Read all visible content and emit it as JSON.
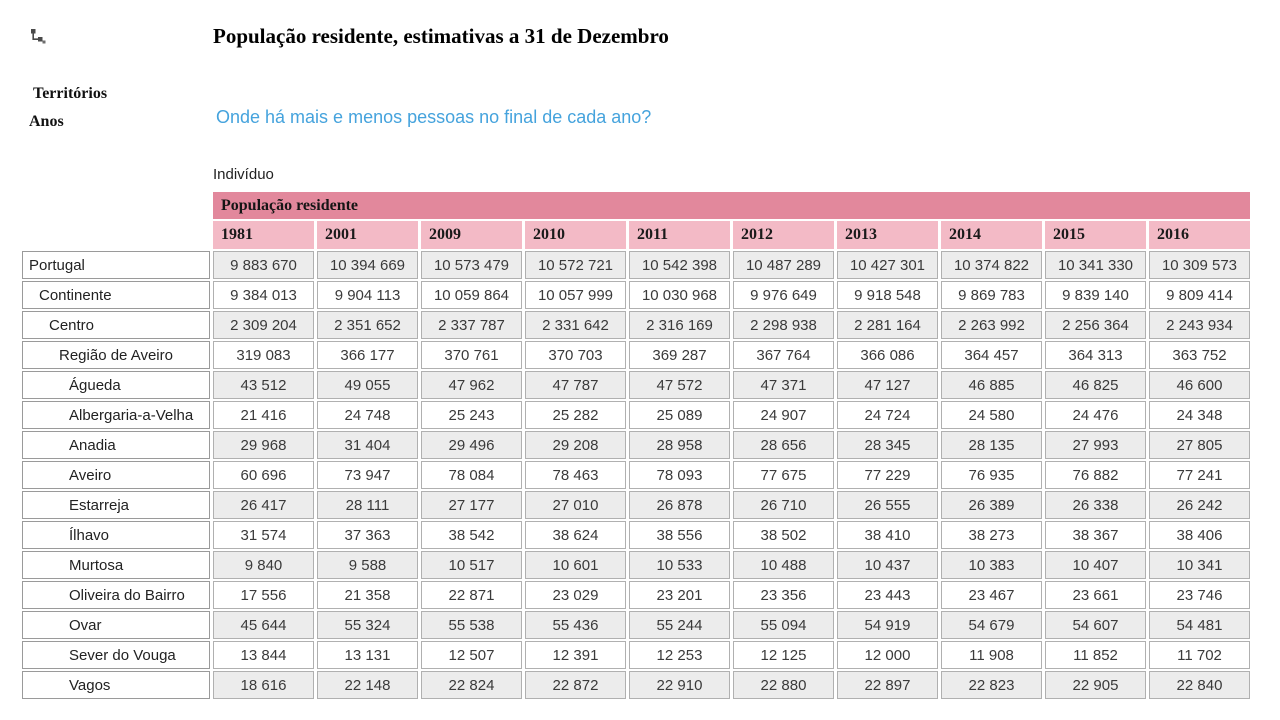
{
  "header": {
    "title": "População residente, estimativas a 31 de Dezembro",
    "territorios_label": "Territórios",
    "anos_label": "Anos",
    "question_link": "Onde há mais e menos pessoas no final de cada ano?",
    "unit_label": "Indivíduo",
    "hierarchy_icon": "hierarchy-icon"
  },
  "colors": {
    "group_header_bg": "#e2889c",
    "year_header_bg": "#f3bac6",
    "stripe_bg": "#ececec",
    "link_blue": "#45a3dd"
  },
  "table": {
    "group_header": "População residente",
    "years": [
      "1981",
      "2001",
      "2009",
      "2010",
      "2011",
      "2012",
      "2013",
      "2014",
      "2015",
      "2016"
    ],
    "rows": [
      {
        "label": "Portugal",
        "level": 0,
        "values": [
          "9 883 670",
          "10 394 669",
          "10 573 479",
          "10 572 721",
          "10 542 398",
          "10 487 289",
          "10 427 301",
          "10 374 822",
          "10 341 330",
          "10 309 573"
        ]
      },
      {
        "label": "Continente",
        "level": 1,
        "values": [
          "9 384 013",
          "9 904 113",
          "10 059 864",
          "10 057 999",
          "10 030 968",
          "9 976 649",
          "9 918 548",
          "9 869 783",
          "9 839 140",
          "9 809 414"
        ]
      },
      {
        "label": "Centro",
        "level": 2,
        "values": [
          "2 309 204",
          "2 351 652",
          "2 337 787",
          "2 331 642",
          "2 316 169",
          "2 298 938",
          "2 281 164",
          "2 263 992",
          "2 256 364",
          "2 243 934"
        ]
      },
      {
        "label": "Região de Aveiro",
        "level": 3,
        "values": [
          "319 083",
          "366 177",
          "370 761",
          "370 703",
          "369 287",
          "367 764",
          "366 086",
          "364 457",
          "364 313",
          "363 752"
        ]
      },
      {
        "label": "Águeda",
        "level": 4,
        "values": [
          "43 512",
          "49 055",
          "47 962",
          "47 787",
          "47 572",
          "47 371",
          "47 127",
          "46 885",
          "46 825",
          "46 600"
        ]
      },
      {
        "label": "Albergaria-a-Velha",
        "level": 4,
        "values": [
          "21 416",
          "24 748",
          "25 243",
          "25 282",
          "25 089",
          "24 907",
          "24 724",
          "24 580",
          "24 476",
          "24 348"
        ]
      },
      {
        "label": "Anadia",
        "level": 4,
        "values": [
          "29 968",
          "31 404",
          "29 496",
          "29 208",
          "28 958",
          "28 656",
          "28 345",
          "28 135",
          "27 993",
          "27 805"
        ]
      },
      {
        "label": "Aveiro",
        "level": 4,
        "values": [
          "60 696",
          "73 947",
          "78 084",
          "78 463",
          "78 093",
          "77 675",
          "77 229",
          "76 935",
          "76 882",
          "77 241"
        ]
      },
      {
        "label": "Estarreja",
        "level": 4,
        "values": [
          "26 417",
          "28 111",
          "27 177",
          "27 010",
          "26 878",
          "26 710",
          "26 555",
          "26 389",
          "26 338",
          "26 242"
        ]
      },
      {
        "label": "Ílhavo",
        "level": 4,
        "values": [
          "31 574",
          "37 363",
          "38 542",
          "38 624",
          "38 556",
          "38 502",
          "38 410",
          "38 273",
          "38 367",
          "38 406"
        ]
      },
      {
        "label": "Murtosa",
        "level": 4,
        "values": [
          "9 840",
          "9 588",
          "10 517",
          "10 601",
          "10 533",
          "10 488",
          "10 437",
          "10 383",
          "10 407",
          "10 341"
        ]
      },
      {
        "label": "Oliveira do Bairro",
        "level": 4,
        "values": [
          "17 556",
          "21 358",
          "22 871",
          "23 029",
          "23 201",
          "23 356",
          "23 443",
          "23 467",
          "23 661",
          "23 746"
        ]
      },
      {
        "label": "Ovar",
        "level": 4,
        "values": [
          "45 644",
          "55 324",
          "55 538",
          "55 436",
          "55 244",
          "55 094",
          "54 919",
          "54 679",
          "54 607",
          "54 481"
        ]
      },
      {
        "label": "Sever do Vouga",
        "level": 4,
        "values": [
          "13 844",
          "13 131",
          "12 507",
          "12 391",
          "12 253",
          "12 125",
          "12 000",
          "11 908",
          "11 852",
          "11 702"
        ]
      },
      {
        "label": "Vagos",
        "level": 4,
        "values": [
          "18 616",
          "22 148",
          "22 824",
          "22 872",
          "22 910",
          "22 880",
          "22 897",
          "22 823",
          "22 905",
          "22 840"
        ]
      }
    ]
  }
}
